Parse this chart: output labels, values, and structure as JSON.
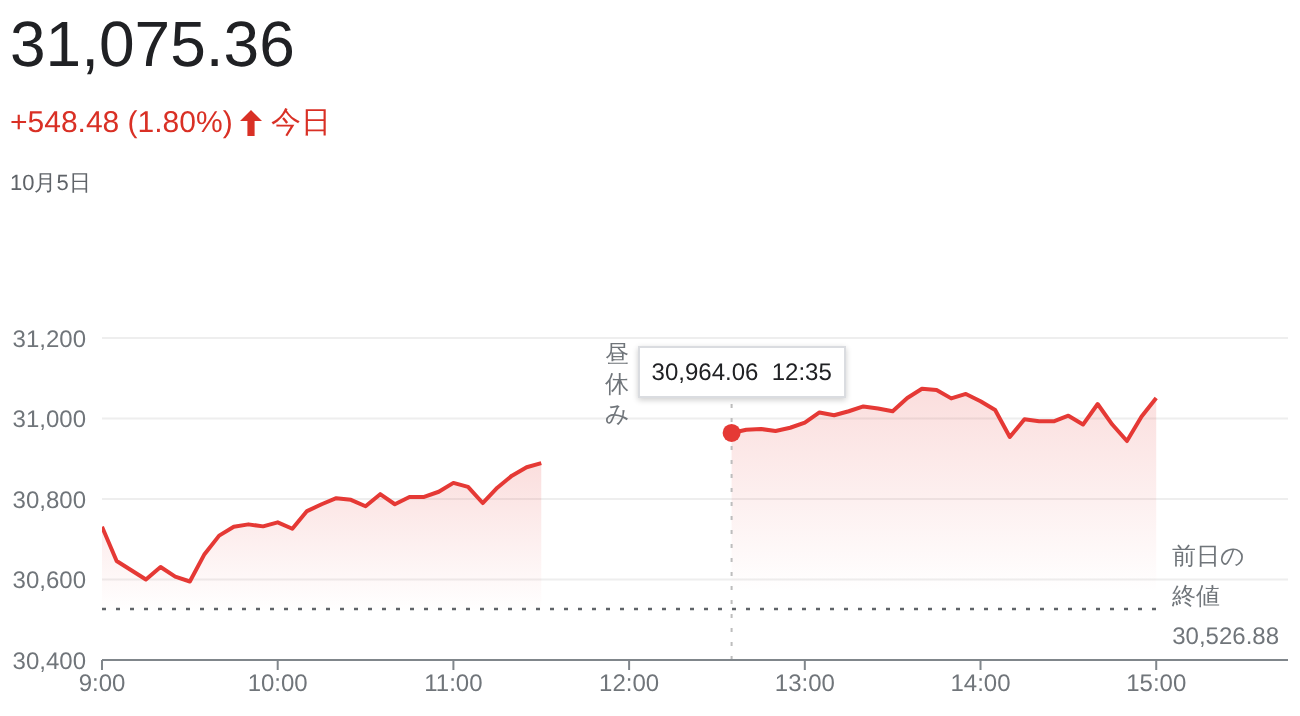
{
  "chart_data": {
    "type": "area",
    "title": "31,075.36",
    "subtitle": "+548.48 (1.80%)",
    "annotations": [
      "今日",
      "10月5日",
      "昼休み",
      {
        "text": "30,964.06 12:35",
        "x": 12.5833,
        "y": 30964.06
      }
    ],
    "series": [
      {
        "color": "#e53935",
        "x": [
          9,
          9.0833,
          9.1667,
          9.25,
          9.3333,
          9.4167,
          9.5,
          9.5833,
          9.6667,
          9.75,
          9.8333,
          9.9167,
          10,
          10.0833,
          10.1667,
          10.25,
          10.3333,
          10.4167,
          10.5,
          10.5833,
          10.6667,
          10.75,
          10.8333,
          10.9167,
          11,
          11.0833,
          11.1667,
          11.25,
          11.3333,
          11.4167,
          11.5
        ],
        "values": [
          30731,
          30646,
          30623,
          30600,
          30631,
          30607,
          30595,
          30663,
          30709,
          30731,
          30737,
          30732,
          30742,
          30726,
          30770,
          30787,
          30802,
          30798,
          30782,
          30812,
          30787,
          30805,
          30805,
          30818,
          30840,
          30830,
          30790,
          30828,
          30858,
          30879,
          30889
        ]
      },
      {
        "color": "#e53935",
        "x": [
          12.5833,
          12.6667,
          12.75,
          12.8333,
          12.9167,
          13,
          13.0833,
          13.1667,
          13.25,
          13.3333,
          13.4167,
          13.5,
          13.5833,
          13.6667,
          13.75,
          13.8333,
          13.9167,
          14,
          14.0833,
          14.1667,
          14.25,
          14.3333,
          14.4167,
          14.5,
          14.5833,
          14.6667,
          14.75,
          14.8333,
          14.9167,
          15
        ],
        "values": [
          30964,
          30972,
          30974,
          30969,
          30977,
          30990,
          31015,
          31008,
          31018,
          31030,
          31025,
          31018,
          31051,
          31074,
          31071,
          31050,
          31061,
          31043,
          31021,
          30954,
          30998,
          30993,
          30993,
          31007,
          30985,
          31036,
          30985,
          30944,
          31005,
          31051
        ]
      }
    ],
    "xlim": [
      9,
      15.75
    ],
    "xticks": [
      {
        "value": 9,
        "label": "9:00"
      },
      {
        "value": 10,
        "label": "10:00"
      },
      {
        "value": 11,
        "label": "11:00"
      },
      {
        "value": 12,
        "label": "12:00"
      },
      {
        "value": 13,
        "label": "13:00"
      },
      {
        "value": 14,
        "label": "14:00"
      },
      {
        "value": 15,
        "label": "15:00"
      }
    ],
    "ylim": [
      30400,
      31200
    ],
    "yticks": [
      {
        "value": 30400,
        "label": "30,400"
      },
      {
        "value": 30600,
        "label": "30,600"
      },
      {
        "value": 30800,
        "label": "30,800"
      },
      {
        "value": 31000,
        "label": "31,000"
      },
      {
        "value": 31200,
        "label": "31,200"
      }
    ],
    "grid": "y",
    "marker": "none",
    "line_style": "solid",
    "ref_lines": [
      {
        "axis": "y",
        "value": 30526.88,
        "label": "前日の終値 30,526.88",
        "line_style": "dotted",
        "color": "#5f6368"
      },
      {
        "axis": "x",
        "value": 12.5833,
        "label": null,
        "line_style": "dotted",
        "color": "#bdbdbd"
      }
    ]
  }
}
